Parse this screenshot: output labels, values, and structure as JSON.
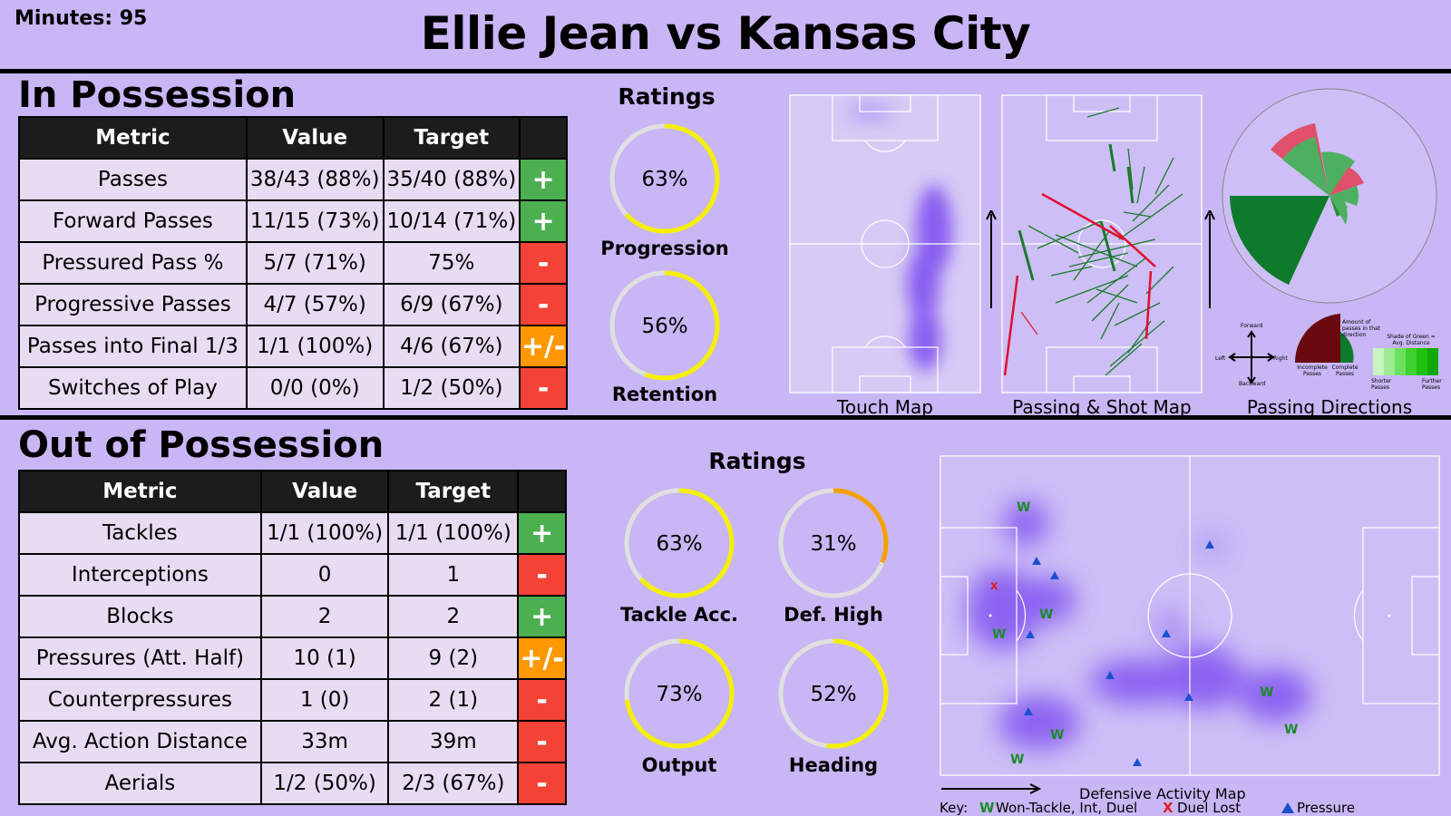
{
  "header": {
    "minutes": "Minutes: 95",
    "title": "Ellie Jean vs Kansas City"
  },
  "in_possession": {
    "heading": "In Possession",
    "columns": [
      "Metric",
      "Value",
      "Target",
      ""
    ],
    "rows": [
      {
        "metric": "Passes",
        "value": "38/43 (88%)",
        "target": "35/40 (88%)",
        "indicator": "+"
      },
      {
        "metric": "Forward Passes",
        "value": "11/15 (73%)",
        "target": "10/14 (71%)",
        "indicator": "+"
      },
      {
        "metric": "Pressured Pass %",
        "value": "5/7 (71%)",
        "target": "75%",
        "indicator": "-"
      },
      {
        "metric": "Progressive Passes",
        "value": "4/7 (57%)",
        "target": "6/9 (67%)",
        "indicator": "-"
      },
      {
        "metric": "Passes into Final 1/3",
        "value": "1/1 (100%)",
        "target": "4/6 (67%)",
        "indicator": "+/-"
      },
      {
        "metric": "Switches of Play",
        "value": "0/0 (0%)",
        "target": "1/2 (50%)",
        "indicator": "-"
      }
    ],
    "ratings_title": "Ratings",
    "ratings": [
      {
        "label": "Progression",
        "text": "63%",
        "value": 63,
        "color": "#f5f000"
      },
      {
        "label": "Retention",
        "text": "56%",
        "value": 56,
        "color": "#f5f000"
      }
    ],
    "map_captions": [
      "Touch Map",
      "Passing & Shot Map",
      "Passing Directions"
    ],
    "legend": {
      "forward": "Forward",
      "backward": "Backward",
      "left": "Left",
      "right": "Right",
      "incomplete": "Incomplete Passes",
      "complete": "Complete Passes",
      "amount": "Amount of passes in that direction",
      "shade": "Shade of Green = Avg. Distance",
      "shorter": "Shorter Passes",
      "further": "Further Passes"
    }
  },
  "out_possession": {
    "heading": "Out of Possession",
    "columns": [
      "Metric",
      "Value",
      "Target",
      ""
    ],
    "rows": [
      {
        "metric": "Tackles",
        "value": "1/1 (100%)",
        "target": "1/1 (100%)",
        "indicator": "+"
      },
      {
        "metric": "Interceptions",
        "value": "0",
        "target": "1",
        "indicator": "-"
      },
      {
        "metric": "Blocks",
        "value": "2",
        "target": "2",
        "indicator": "+"
      },
      {
        "metric": "Pressures (Att. Half)",
        "value": "10 (1)",
        "target": "9 (2)",
        "indicator": "+/-"
      },
      {
        "metric": "Counterpressures",
        "value": "1 (0)",
        "target": "2 (1)",
        "indicator": "-"
      },
      {
        "metric": "Avg. Action Distance",
        "value": "33m",
        "target": "39m",
        "indicator": "-"
      },
      {
        "metric": "Aerials",
        "value": "1/2 (50%)",
        "target": "2/3 (67%)",
        "indicator": "-"
      }
    ],
    "ratings_title": "Ratings",
    "ratings": [
      {
        "label": "Tackle Acc.",
        "text": "63%",
        "value": 63,
        "color": "#f5f000"
      },
      {
        "label": "Def. High",
        "text": "31%",
        "value": 31,
        "color": "#f5a000"
      },
      {
        "label": "Output",
        "text": "73%",
        "value": 73,
        "color": "#f5f000"
      },
      {
        "label": "Heading",
        "text": "52%",
        "value": 52,
        "color": "#f5f000"
      }
    ],
    "map_caption": "Defensive Activity Map",
    "key": {
      "label": "Key:",
      "won": "Won-Tackle, Int, Duel",
      "lost": "Duel Lost",
      "pressure": "Pressure",
      "won_marker": "W",
      "lost_marker": "X"
    }
  },
  "indicator_colors": {
    "+": "#4caf50",
    "-": "#f44336",
    "+/-": "#ff9800"
  },
  "chart_data": [
    {
      "type": "table",
      "title": "In Possession",
      "columns": [
        "Metric",
        "Value",
        "Target"
      ],
      "rows": [
        [
          "Passes",
          "38/43 (88%)",
          "35/40 (88%)"
        ],
        [
          "Forward Passes",
          "11/15 (73%)",
          "10/14 (71%)"
        ],
        [
          "Pressured Pass %",
          "5/7 (71%)",
          "75%"
        ],
        [
          "Progressive Passes",
          "4/7 (57%)",
          "6/9 (67%)"
        ],
        [
          "Passes into Final 1/3",
          "1/1 (100%)",
          "4/6 (67%)"
        ],
        [
          "Switches of Play",
          "0/0 (0%)",
          "1/2 (50%)"
        ]
      ]
    },
    {
      "type": "table",
      "title": "Out of Possession",
      "columns": [
        "Metric",
        "Value",
        "Target"
      ],
      "rows": [
        [
          "Tackles",
          "1/1 (100%)",
          "1/1 (100%)"
        ],
        [
          "Interceptions",
          "0",
          "1"
        ],
        [
          "Blocks",
          "2",
          "2"
        ],
        [
          "Pressures (Att. Half)",
          "10 (1)",
          "9 (2)"
        ],
        [
          "Counterpressures",
          "1 (0)",
          "2 (1)"
        ],
        [
          "Avg. Action Distance",
          "33m",
          "39m"
        ],
        [
          "Aerials",
          "1/2 (50%)",
          "2/3 (67%)"
        ]
      ]
    },
    {
      "type": "pie",
      "title": "Ratings",
      "categories": [
        "Progression",
        "Retention",
        "Tackle Acc.",
        "Def. High",
        "Output",
        "Heading"
      ],
      "values": [
        63,
        56,
        63,
        31,
        73,
        52
      ]
    }
  ]
}
